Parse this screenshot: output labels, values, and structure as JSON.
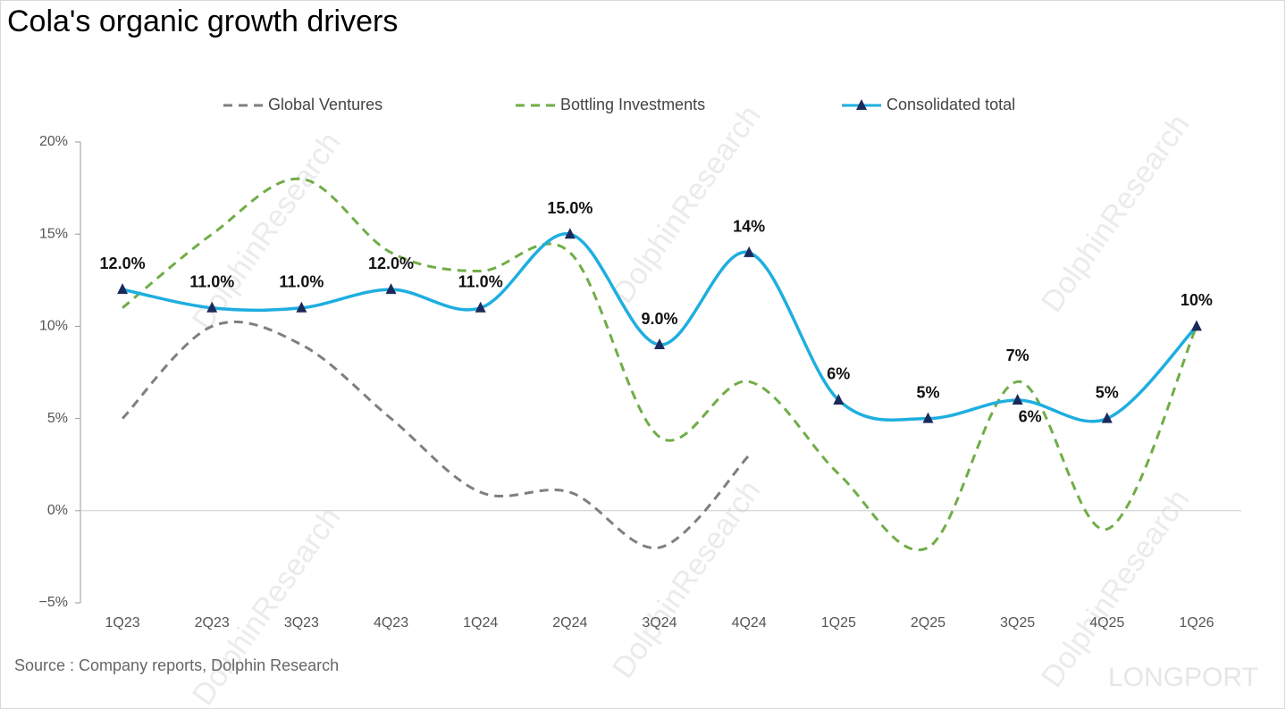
{
  "chart_data": {
    "type": "line",
    "title": "Cola's organic growth  drivers",
    "source": "Source : Company reports, Dolphin Research",
    "watermark": "DolphinResearch",
    "brand": "LONGPORT",
    "categories": [
      "1Q23",
      "2Q23",
      "3Q23",
      "4Q23",
      "1Q24",
      "2Q24",
      "3Q24",
      "4Q24",
      "1Q25",
      "2Q25",
      "3Q25",
      "4Q25",
      "1Q26"
    ],
    "ylim": [
      -5,
      20
    ],
    "yticks": [
      {
        "value": -5,
        "label": "−5%"
      },
      {
        "value": 0,
        "label": "0%"
      },
      {
        "value": 5,
        "label": "5%"
      },
      {
        "value": 10,
        "label": "10%"
      },
      {
        "value": 15,
        "label": "15%"
      },
      {
        "value": 20,
        "label": "20%"
      }
    ],
    "zero_line": true,
    "series": [
      {
        "name": "Global Ventures",
        "color": "#7f7f7f",
        "dash": true,
        "values": [
          5,
          10,
          9,
          5,
          1,
          1,
          -2,
          3,
          null,
          null,
          null,
          null,
          null
        ]
      },
      {
        "name": "Bottling Investments",
        "color": "#70ad47",
        "dash": true,
        "values": [
          11,
          15,
          18,
          14,
          13,
          14,
          4,
          7,
          2,
          -2,
          7,
          -1,
          10
        ],
        "value_labels": [
          null,
          null,
          null,
          null,
          null,
          null,
          null,
          null,
          null,
          null,
          "7%",
          null,
          null
        ]
      },
      {
        "name": "Consolidated total",
        "color": "#1eaee0",
        "marker_color": "#1b2a5c",
        "values": [
          12,
          11,
          11,
          12,
          11,
          15,
          9,
          14,
          6,
          5,
          6,
          5,
          10
        ],
        "value_labels": [
          "12.0%",
          "11.0%",
          "11.0%",
          "12.0%",
          "11.0%",
          "15.0%",
          "9.0%",
          "14%",
          "6%",
          "5%",
          "6%",
          "5%",
          "10%"
        ]
      }
    ]
  }
}
